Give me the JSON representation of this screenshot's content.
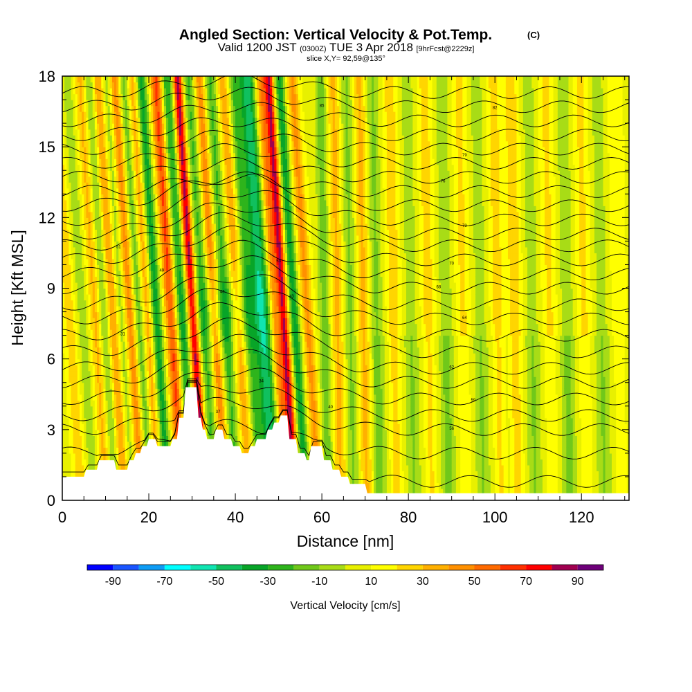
{
  "chart_data": {
    "type": "heatmap",
    "title": "Angled Section: Vertical Velocity & Pot.Temp.",
    "title_units": "(C)",
    "subtitle_parts": [
      "Valid 1200 JST",
      "(0300Z)",
      "TUE 3 Apr 2018",
      "[9hrFcst@2229z]"
    ],
    "slice_text": "slice X,Y= 92,59@135°",
    "xlabel": "Distance [nm]",
    "ylabel": "Height [Kft MSL]",
    "xlim": [
      0,
      131
    ],
    "ylim": [
      0,
      18
    ],
    "x_ticks": [
      0,
      20,
      40,
      60,
      80,
      100,
      120
    ],
    "y_ticks": [
      0,
      3,
      6,
      9,
      12,
      15,
      18
    ],
    "colorbar": {
      "label": "Vertical Velocity [cm/s]",
      "tick_values": [
        -90,
        -70,
        -50,
        -30,
        -10,
        10,
        30,
        50,
        70,
        90
      ],
      "boundaries": [
        -100,
        -90,
        -80,
        -70,
        -60,
        -50,
        -40,
        -30,
        -20,
        -10,
        0,
        10,
        20,
        30,
        40,
        50,
        60,
        70,
        80,
        90,
        100
      ],
      "colors": [
        "#0000ff",
        "#1a55ff",
        "#0e9cf5",
        "#00ffff",
        "#10e5b2",
        "#10c05e",
        "#08a528",
        "#2eb41c",
        "#70c81a",
        "#a8dc16",
        "#e8f000",
        "#ffff00",
        "#ffd500",
        "#ffb000",
        "#ff9000",
        "#ff6a00",
        "#ff3000",
        "#ff0000",
        "#a00050",
        "#6e007a"
      ]
    },
    "terrain_height_kft": [
      [
        0,
        1.0
      ],
      [
        5,
        1.0
      ],
      [
        5.5,
        1.3
      ],
      [
        8,
        1.3
      ],
      [
        8.5,
        1.7
      ],
      [
        12,
        1.7
      ],
      [
        12.5,
        1.3
      ],
      [
        15,
        1.3
      ],
      [
        15.5,
        1.7
      ],
      [
        16.5,
        1.7
      ],
      [
        17,
        2.0
      ],
      [
        18,
        2.0
      ],
      [
        18.5,
        2.3
      ],
      [
        19.5,
        2.3
      ],
      [
        20,
        2.6
      ],
      [
        21.5,
        2.6
      ],
      [
        22,
        2.3
      ],
      [
        25,
        2.3
      ],
      [
        25.5,
        2.6
      ],
      [
        26.5,
        2.6
      ],
      [
        27,
        3.5
      ],
      [
        28,
        3.5
      ],
      [
        28.5,
        4.8
      ],
      [
        31,
        4.8
      ],
      [
        31.5,
        3.5
      ],
      [
        32,
        3.5
      ],
      [
        32.5,
        3.0
      ],
      [
        33,
        3.0
      ],
      [
        33.5,
        2.6
      ],
      [
        35,
        2.6
      ],
      [
        35.5,
        3.0
      ],
      [
        37,
        3.0
      ],
      [
        37.5,
        2.6
      ],
      [
        39,
        2.6
      ],
      [
        39.5,
        2.3
      ],
      [
        41,
        2.3
      ],
      [
        41.5,
        2.0
      ],
      [
        43,
        2.0
      ],
      [
        43.5,
        2.3
      ],
      [
        44.5,
        2.3
      ],
      [
        45,
        2.6
      ],
      [
        47,
        2.6
      ],
      [
        47.5,
        3.0
      ],
      [
        48.5,
        3.0
      ],
      [
        49,
        3.3
      ],
      [
        50,
        3.3
      ],
      [
        50.5,
        3.6
      ],
      [
        52,
        3.6
      ],
      [
        52.5,
        2.6
      ],
      [
        54,
        2.6
      ],
      [
        54.5,
        2.0
      ],
      [
        56,
        2.0
      ],
      [
        56.5,
        1.7
      ],
      [
        57,
        1.7
      ],
      [
        57.5,
        2.3
      ],
      [
        60,
        2.3
      ],
      [
        60.5,
        1.7
      ],
      [
        62,
        1.7
      ],
      [
        62.5,
        1.3
      ],
      [
        64,
        1.3
      ],
      [
        64.5,
        1.0
      ],
      [
        66,
        1.0
      ],
      [
        66.5,
        0.7
      ],
      [
        70,
        0.7
      ],
      [
        70.5,
        0.3
      ],
      [
        131,
        0.3
      ]
    ],
    "updraft_cores": [
      {
        "x": 3,
        "w": 0.9,
        "v": 20
      },
      {
        "x": 6,
        "w": 0.9,
        "v": -15
      },
      {
        "x": 9,
        "w": 1.0,
        "v": 25
      },
      {
        "x": 11,
        "w": 0.9,
        "v": -25
      },
      {
        "x": 13,
        "w": 1.0,
        "v": 35
      },
      {
        "x": 15,
        "w": 0.9,
        "v": -20
      },
      {
        "x": 17,
        "w": 1.0,
        "v": 40
      },
      {
        "x": 19,
        "w": 0.9,
        "v": -30
      },
      {
        "x": 21,
        "w": 1.0,
        "v": 30
      },
      {
        "x": 23,
        "w": 0.9,
        "v": -45
      },
      {
        "x": 26.5,
        "w": 1.0,
        "v": 55
      },
      {
        "x": 29,
        "w": 1.0,
        "v": -40
      },
      {
        "x": 31.5,
        "w": 0.8,
        "v": 78
      },
      {
        "x": 34,
        "w": 1.0,
        "v": -30
      },
      {
        "x": 36.5,
        "w": 0.9,
        "v": 40
      },
      {
        "x": 39,
        "w": 1.0,
        "v": -30
      },
      {
        "x": 42,
        "w": 1.0,
        "v": 30
      },
      {
        "x": 44.5,
        "w": 1.0,
        "v": -30
      },
      {
        "x": 47.5,
        "w": 1.3,
        "v": -55
      },
      {
        "x": 50.5,
        "w": 0.8,
        "v": 40
      },
      {
        "x": 52.5,
        "w": 0.8,
        "v": 75
      },
      {
        "x": 55,
        "w": 0.8,
        "v": -45
      },
      {
        "x": 58,
        "w": 0.9,
        "v": 35
      },
      {
        "x": 61,
        "w": 0.9,
        "v": -25
      },
      {
        "x": 64,
        "w": 1.0,
        "v": 25
      },
      {
        "x": 67,
        "w": 1.0,
        "v": -20
      },
      {
        "x": 70,
        "w": 1.0,
        "v": 25
      },
      {
        "x": 73,
        "w": 1.0,
        "v": -20
      },
      {
        "x": 77,
        "w": 1.0,
        "v": 20
      },
      {
        "x": 81,
        "w": 1.0,
        "v": -15
      },
      {
        "x": 85,
        "w": 1.0,
        "v": 18
      },
      {
        "x": 89,
        "w": 1.0,
        "v": -18
      },
      {
        "x": 93,
        "w": 1.0,
        "v": 15
      },
      {
        "x": 97,
        "w": 1.0,
        "v": -15
      },
      {
        "x": 101,
        "w": 1.0,
        "v": 18
      },
      {
        "x": 105,
        "w": 1.0,
        "v": 22
      },
      {
        "x": 109,
        "w": 1.0,
        "v": -15
      },
      {
        "x": 113,
        "w": 1.0,
        "v": 15
      },
      {
        "x": 117,
        "w": 1.0,
        "v": -18
      },
      {
        "x": 121,
        "w": 1.0,
        "v": 15
      },
      {
        "x": 125,
        "w": 1.0,
        "v": -15
      },
      {
        "x": 129,
        "w": 1.0,
        "v": 12
      }
    ],
    "isentrope_base_heights_kft": [
      0.8,
      2.0,
      3.0,
      3.6,
      4.3,
      5.0,
      5.6,
      6.3,
      7.0,
      7.7,
      8.3,
      9.0,
      9.6,
      10.2,
      10.8,
      11.3,
      11.9,
      12.5,
      13.1,
      13.7,
      14.3,
      14.9,
      15.5,
      16.1,
      16.7,
      17.3
    ],
    "isentrope_labels": [
      {
        "text": "31",
        "x": 14,
        "y": 7.0
      },
      {
        "text": "34",
        "x": 46,
        "y": 5.0
      },
      {
        "text": "37",
        "x": 36,
        "y": 3.7
      },
      {
        "text": "40",
        "x": 62,
        "y": 3.9
      },
      {
        "text": "43",
        "x": 53,
        "y": 8.6
      },
      {
        "text": "46",
        "x": 37,
        "y": 8.8
      },
      {
        "text": "49",
        "x": 23,
        "y": 9.7
      },
      {
        "text": "51",
        "x": 13,
        "y": 10.7
      },
      {
        "text": "53",
        "x": 50,
        "y": 10.1
      },
      {
        "text": "56",
        "x": 90,
        "y": 3.0
      },
      {
        "text": "59",
        "x": 95,
        "y": 4.2
      },
      {
        "text": "62",
        "x": 90,
        "y": 5.6
      },
      {
        "text": "64",
        "x": 93,
        "y": 7.7
      },
      {
        "text": "68",
        "x": 87,
        "y": 9.0
      },
      {
        "text": "70",
        "x": 90,
        "y": 10.0
      },
      {
        "text": "73",
        "x": 93,
        "y": 11.6
      },
      {
        "text": "76",
        "x": 88,
        "y": 13.5
      },
      {
        "text": "79",
        "x": 93,
        "y": 14.6
      },
      {
        "text": "82",
        "x": 100,
        "y": 16.6
      },
      {
        "text": "85",
        "x": 60,
        "y": 16.7
      }
    ]
  }
}
